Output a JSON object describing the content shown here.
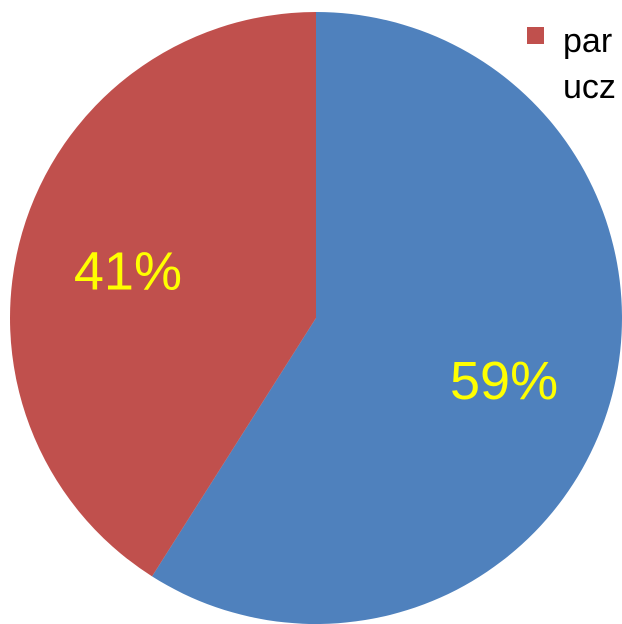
{
  "chart_data": {
    "type": "pie",
    "categories": [
      null,
      "par ucz"
    ],
    "values": [
      59,
      41
    ],
    "value_labels": [
      "59%",
      "41%"
    ],
    "colors": [
      "#4f81bd",
      "#c0504d"
    ],
    "label_color": "#ffff00",
    "legend": "top-right"
  }
}
